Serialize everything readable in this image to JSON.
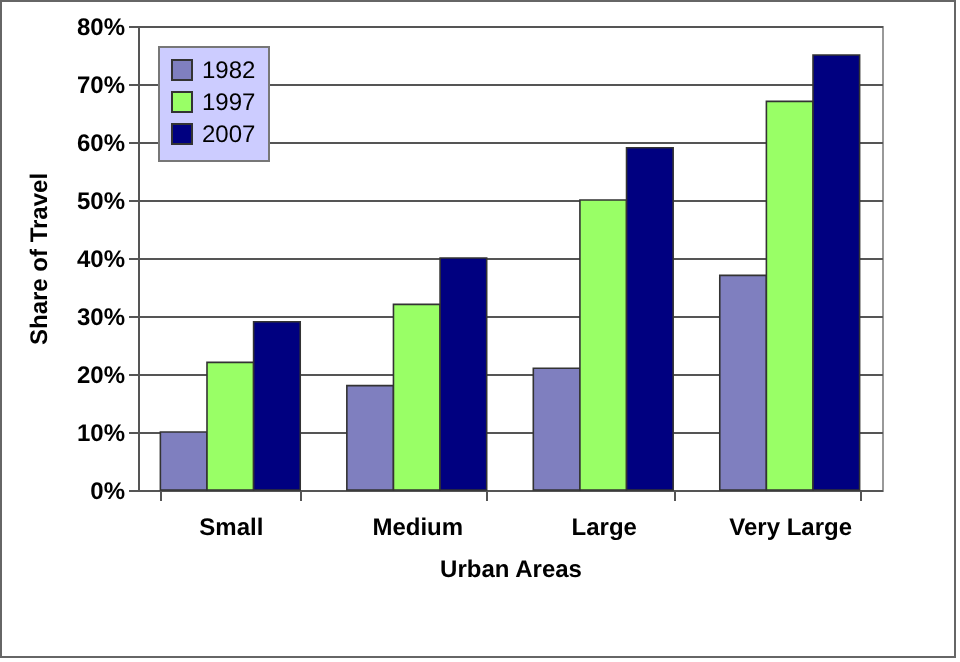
{
  "chart_data": {
    "type": "bar",
    "xlabel": "Urban Areas",
    "ylabel": "Share of Travel",
    "categories": [
      "Small",
      "Medium",
      "Large",
      "Very Large"
    ],
    "series": [
      {
        "name": "1982",
        "color": "#7f7fbf",
        "values": [
          10,
          18,
          21,
          37
        ]
      },
      {
        "name": "1997",
        "color": "#99ff66",
        "values": [
          22,
          32,
          50,
          67
        ]
      },
      {
        "name": "2007",
        "color": "#000080",
        "values": [
          29,
          40,
          59,
          75
        ]
      }
    ],
    "ylim": [
      0,
      80
    ],
    "yticks": [
      {
        "value": 0,
        "label": "0%"
      },
      {
        "value": 10,
        "label": "10%"
      },
      {
        "value": 20,
        "label": "20%"
      },
      {
        "value": 30,
        "label": "30%"
      },
      {
        "value": 40,
        "label": "40%"
      },
      {
        "value": 50,
        "label": "50%"
      },
      {
        "value": 60,
        "label": "60%"
      },
      {
        "value": 70,
        "label": "70%"
      },
      {
        "value": 80,
        "label": "80%"
      }
    ],
    "grid": "y",
    "legend": "top left"
  }
}
